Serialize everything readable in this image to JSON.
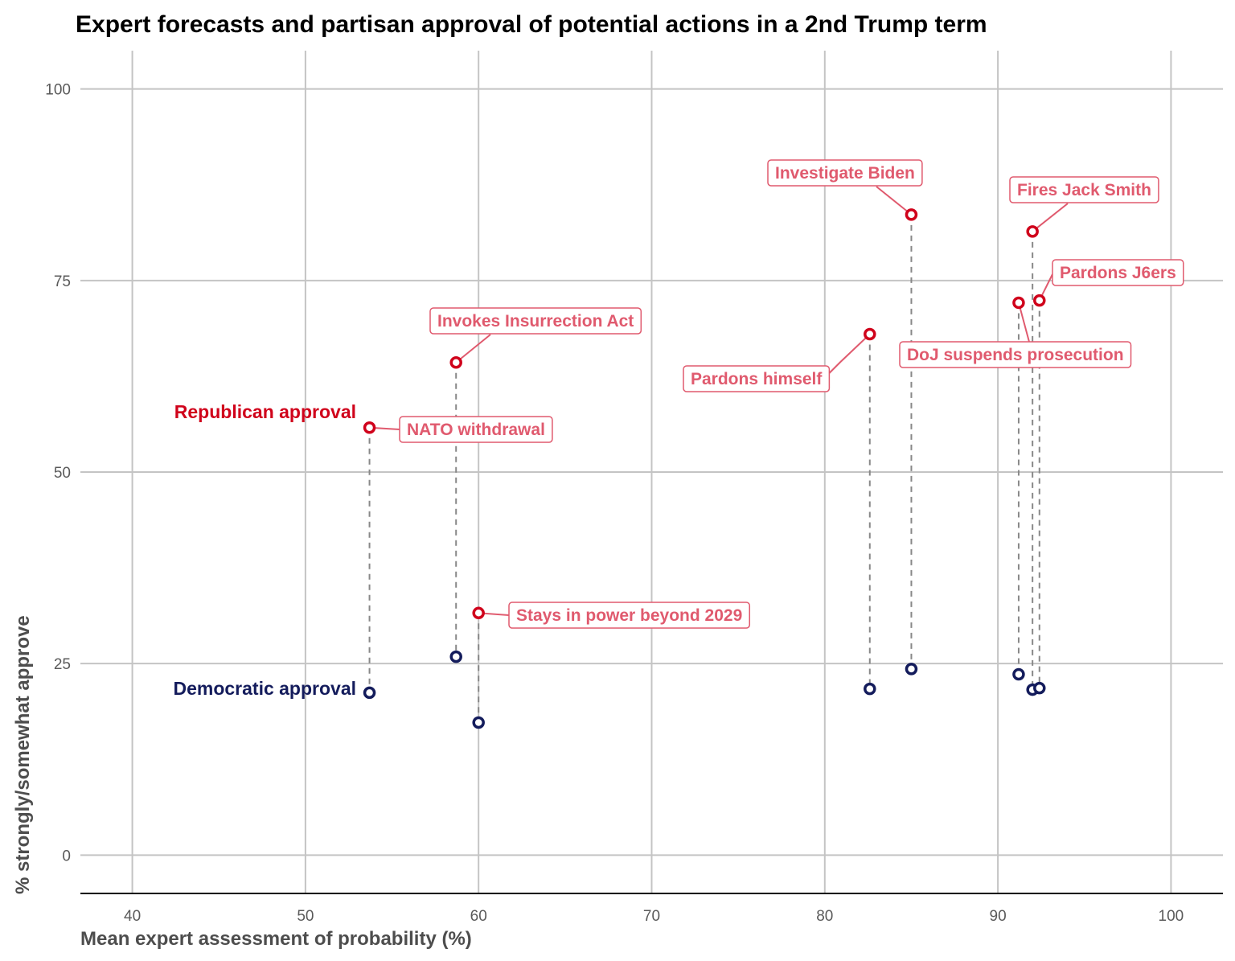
{
  "chart_data": {
    "type": "scatter",
    "title": "Expert forecasts and partisan approval of potential actions in a 2nd Trump term",
    "xlabel": "Mean expert assessment of probability (%)",
    "ylabel": "% strongly/somewhat approve",
    "xlim": [
      37,
      103
    ],
    "ylim": [
      -5,
      105
    ],
    "x_ticks": [
      40,
      50,
      60,
      70,
      80,
      90,
      100
    ],
    "y_ticks": [
      0,
      25,
      50,
      75,
      100
    ],
    "grid": true,
    "series": [
      {
        "name": "Republican approval",
        "color": "#d0021b"
      },
      {
        "name": "Democratic approval",
        "color": "#141c5c"
      }
    ],
    "points": [
      {
        "label": "NATO withdrawal",
        "x": 53.7,
        "rep": 55.8,
        "dem": 21.2
      },
      {
        "label": "Invokes Insurrection Act",
        "x": 58.7,
        "rep": 64.3,
        "dem": 25.9
      },
      {
        "label": "Stays in power beyond 2029",
        "x": 60.0,
        "rep": 31.6,
        "dem": 17.3
      },
      {
        "label": "Pardons himself",
        "x": 82.6,
        "rep": 68.0,
        "dem": 21.7
      },
      {
        "label": "Investigate Biden",
        "x": 85.0,
        "rep": 83.6,
        "dem": 24.3
      },
      {
        "label": "DoJ suspends prosecution",
        "x": 91.2,
        "rep": 72.1,
        "dem": 23.6
      },
      {
        "label": "Fires Jack Smith",
        "x": 92.0,
        "rep": 81.4,
        "dem": 21.6
      },
      {
        "label": "Pardons J6ers",
        "x": 92.4,
        "rep": 72.4,
        "dem": 21.8
      }
    ]
  }
}
